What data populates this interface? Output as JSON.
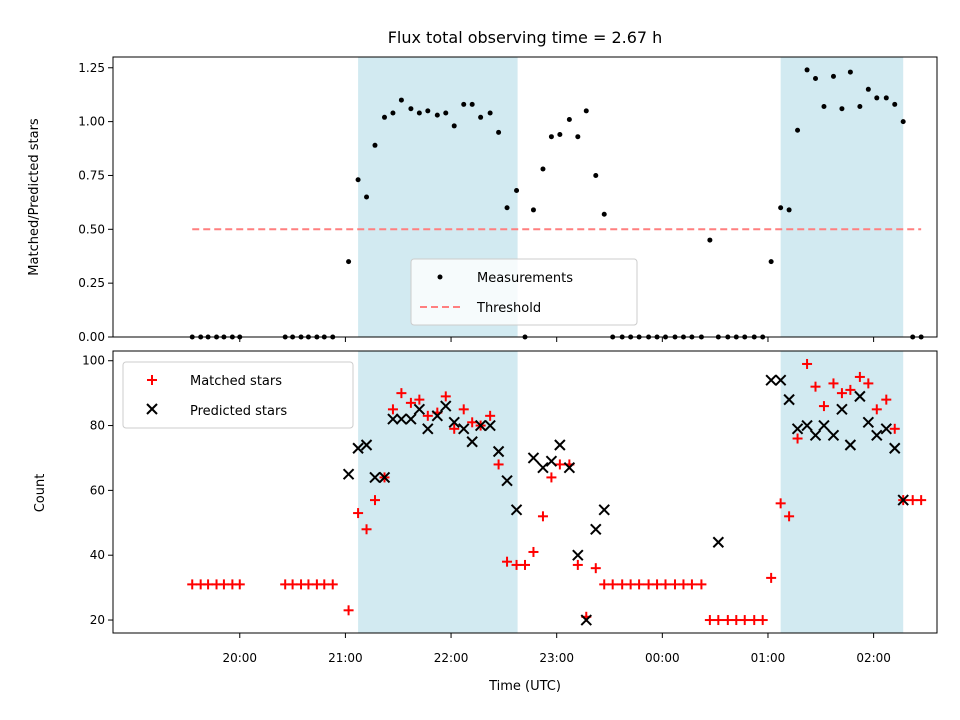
{
  "chart_data": [
    {
      "type": "scatter",
      "title": "Flux total observing time = 2.67 h",
      "ylabel": "Matched/Predicted stars",
      "xlim_hours": [
        18.8,
        26.6
      ],
      "ylim": [
        0,
        1.3
      ],
      "yticks": [
        "0.00",
        "0.25",
        "0.50",
        "0.75",
        "1.00",
        "1.25"
      ],
      "yticks_values": [
        0,
        0.25,
        0.5,
        0.75,
        1.0,
        1.25
      ],
      "xticks_values": [
        20,
        21,
        22,
        23,
        24,
        25,
        26
      ],
      "shaded_spans": [
        [
          21.12,
          22.63
        ],
        [
          25.12,
          26.28
        ]
      ],
      "shade_color": "#add8e6",
      "legend": {
        "placement": "lower-center",
        "entries": [
          "Measurements",
          "Threshold"
        ]
      },
      "series": [
        {
          "name": "Measurements",
          "color": "#000000",
          "marker": "dot",
          "x": [
            19.55,
            19.63,
            19.7,
            19.78,
            19.85,
            19.93,
            20.0,
            20.43,
            20.5,
            20.58,
            20.65,
            20.73,
            20.8,
            20.88,
            21.03,
            21.12,
            21.2,
            21.28,
            21.37,
            21.45,
            21.53,
            21.62,
            21.7,
            21.78,
            21.87,
            21.95,
            22.03,
            22.12,
            22.2,
            22.28,
            22.37,
            22.45,
            22.53,
            22.62,
            22.7,
            22.78,
            22.87,
            22.95,
            23.03,
            23.12,
            23.2,
            23.28,
            23.37,
            23.45,
            23.53,
            23.62,
            23.7,
            23.78,
            23.87,
            23.95,
            24.03,
            24.12,
            24.2,
            24.28,
            24.37,
            24.45,
            24.53,
            24.62,
            24.7,
            24.78,
            24.87,
            24.95,
            25.03,
            25.12,
            25.2,
            25.28,
            25.37,
            25.45,
            25.53,
            25.62,
            25.7,
            25.78,
            25.87,
            25.95,
            26.03,
            26.12,
            26.2,
            26.28,
            26.37,
            26.45
          ],
          "y": [
            0,
            0,
            0,
            0,
            0,
            0,
            0,
            0,
            0,
            0,
            0,
            0,
            0,
            0,
            0.35,
            0.73,
            0.65,
            0.89,
            1.02,
            1.04,
            1.1,
            1.06,
            1.04,
            1.05,
            1.03,
            1.04,
            0.98,
            1.08,
            1.08,
            1.02,
            1.04,
            0.95,
            0.6,
            0.68,
            0,
            0.59,
            0.78,
            0.93,
            0.94,
            1.01,
            0.93,
            1.05,
            0.75,
            0.57,
            0,
            0,
            0,
            0,
            0,
            0,
            0,
            0,
            0,
            0,
            0,
            0.45,
            0,
            0,
            0,
            0,
            0,
            0,
            0.35,
            0.6,
            0.59,
            0.96,
            1.24,
            1.2,
            1.07,
            1.21,
            1.06,
            1.23,
            1.07,
            1.15,
            1.11,
            1.11,
            1.08,
            1.0,
            0,
            0
          ]
        },
        {
          "name": "Threshold",
          "color": "#ff7f7f",
          "style": "dashed",
          "x": [
            19.55,
            26.45
          ],
          "y": [
            0.5,
            0.5
          ]
        }
      ]
    },
    {
      "type": "scatter",
      "xlabel": "Time (UTC)",
      "ylabel": "Count",
      "xlim_hours": [
        18.8,
        26.6
      ],
      "ylim": [
        16,
        103
      ],
      "yticks": [
        "20",
        "40",
        "60",
        "80",
        "100"
      ],
      "yticks_values": [
        20,
        40,
        60,
        80,
        100
      ],
      "xticks": [
        "20:00",
        "21:00",
        "22:00",
        "23:00",
        "00:00",
        "01:00",
        "02:00"
      ],
      "xticks_values": [
        20,
        21,
        22,
        23,
        24,
        25,
        26
      ],
      "shaded_spans": [
        [
          21.12,
          22.63
        ],
        [
          25.12,
          26.28
        ]
      ],
      "shade_color": "#add8e6",
      "legend": {
        "placement": "upper-left",
        "entries": [
          "Matched stars",
          "Predicted stars"
        ]
      },
      "series": [
        {
          "name": "Matched stars",
          "color": "#ff0000",
          "marker": "plus",
          "x": [
            19.55,
            19.63,
            19.7,
            19.78,
            19.85,
            19.93,
            20.0,
            20.43,
            20.5,
            20.58,
            20.65,
            20.73,
            20.8,
            20.88,
            21.03,
            21.12,
            21.2,
            21.28,
            21.37,
            21.45,
            21.53,
            21.62,
            21.7,
            21.78,
            21.87,
            21.95,
            22.03,
            22.12,
            22.2,
            22.28,
            22.37,
            22.45,
            22.53,
            22.62,
            22.7,
            22.78,
            22.87,
            22.95,
            23.03,
            23.12,
            23.2,
            23.28,
            23.37,
            23.45,
            23.53,
            23.62,
            23.7,
            23.78,
            23.87,
            23.95,
            24.03,
            24.12,
            24.2,
            24.28,
            24.37,
            24.45,
            24.53,
            24.62,
            24.7,
            24.78,
            24.87,
            24.95,
            25.03,
            25.12,
            25.2,
            25.28,
            25.37,
            25.45,
            25.53,
            25.62,
            25.7,
            25.78,
            25.87,
            25.95,
            26.03,
            26.12,
            26.2,
            26.28,
            26.37,
            26.45
          ],
          "y": [
            31,
            31,
            31,
            31,
            31,
            31,
            31,
            31,
            31,
            31,
            31,
            31,
            31,
            31,
            23,
            53,
            48,
            57,
            64,
            85,
            90,
            87,
            88,
            83,
            84,
            89,
            79,
            85,
            81,
            80,
            83,
            68,
            38,
            37,
            37,
            41,
            52,
            64,
            68,
            68,
            37,
            21,
            36,
            31,
            31,
            31,
            31,
            31,
            31,
            31,
            31,
            31,
            31,
            31,
            31,
            20,
            20,
            20,
            20,
            20,
            20,
            20,
            33,
            56,
            52,
            76,
            99,
            92,
            86,
            93,
            90,
            91,
            95,
            93,
            85,
            88,
            79,
            57,
            57,
            57
          ]
        },
        {
          "name": "Predicted stars",
          "color": "#000000",
          "marker": "x",
          "x": [
            21.03,
            21.12,
            21.2,
            21.28,
            21.37,
            21.45,
            21.53,
            21.62,
            21.7,
            21.78,
            21.87,
            21.95,
            22.03,
            22.12,
            22.2,
            22.28,
            22.37,
            22.45,
            22.53,
            22.62,
            22.78,
            22.87,
            22.95,
            23.03,
            23.12,
            23.2,
            23.28,
            23.37,
            23.45,
            24.53,
            25.03,
            25.12,
            25.2,
            25.28,
            25.37,
            25.45,
            25.53,
            25.62,
            25.7,
            25.78,
            25.87,
            25.95,
            26.03,
            26.12,
            26.2,
            26.28
          ],
          "y": [
            65,
            73,
            74,
            64,
            64,
            82,
            82,
            82,
            85,
            79,
            83,
            86,
            81,
            79,
            75,
            80,
            80,
            72,
            63,
            54,
            70,
            67,
            69,
            74,
            67,
            40,
            20,
            48,
            54,
            44,
            94,
            94,
            88,
            79,
            80,
            77,
            80,
            77,
            85,
            74,
            89,
            81,
            77,
            79,
            73,
            57
          ]
        }
      ]
    }
  ]
}
